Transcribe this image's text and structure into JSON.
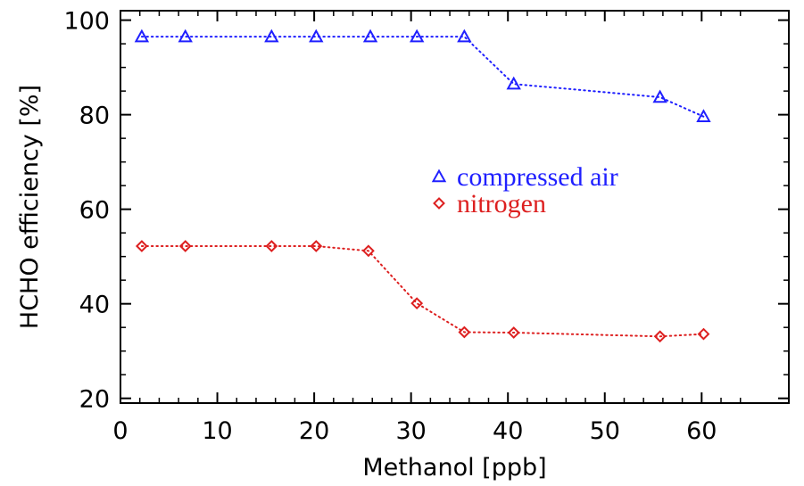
{
  "chart_data": {
    "type": "line",
    "title": "",
    "xlabel": "Methanol [ppb]",
    "ylabel": "HCHO efficiency [%]",
    "xlim": [
      0,
      69
    ],
    "ylim": [
      19,
      102
    ],
    "xticks": [
      0,
      10,
      20,
      30,
      40,
      50,
      60
    ],
    "yticks": [
      20,
      40,
      60,
      80,
      100
    ],
    "grid": false,
    "legend_position": "center-right",
    "series": [
      {
        "name": "compressed air",
        "color": "#2020ff",
        "marker": "triangle",
        "line_style": "dotted",
        "x": [
          2.2,
          6.7,
          15.6,
          20.2,
          25.8,
          30.6,
          35.5,
          40.6,
          55.7,
          60.2
        ],
        "y": [
          96.5,
          96.5,
          96.5,
          96.5,
          96.5,
          96.5,
          96.5,
          86.5,
          83.7,
          79.6
        ]
      },
      {
        "name": "nitrogen",
        "color": "#dd2020",
        "marker": "diamond",
        "line_style": "dotted",
        "x": [
          2.2,
          6.7,
          15.6,
          20.2,
          25.6,
          30.6,
          35.5,
          40.6,
          55.7,
          60.2
        ],
        "y": [
          52.2,
          52.2,
          52.2,
          52.2,
          51.2,
          40.1,
          34.0,
          33.9,
          33.1,
          33.6
        ]
      }
    ]
  }
}
